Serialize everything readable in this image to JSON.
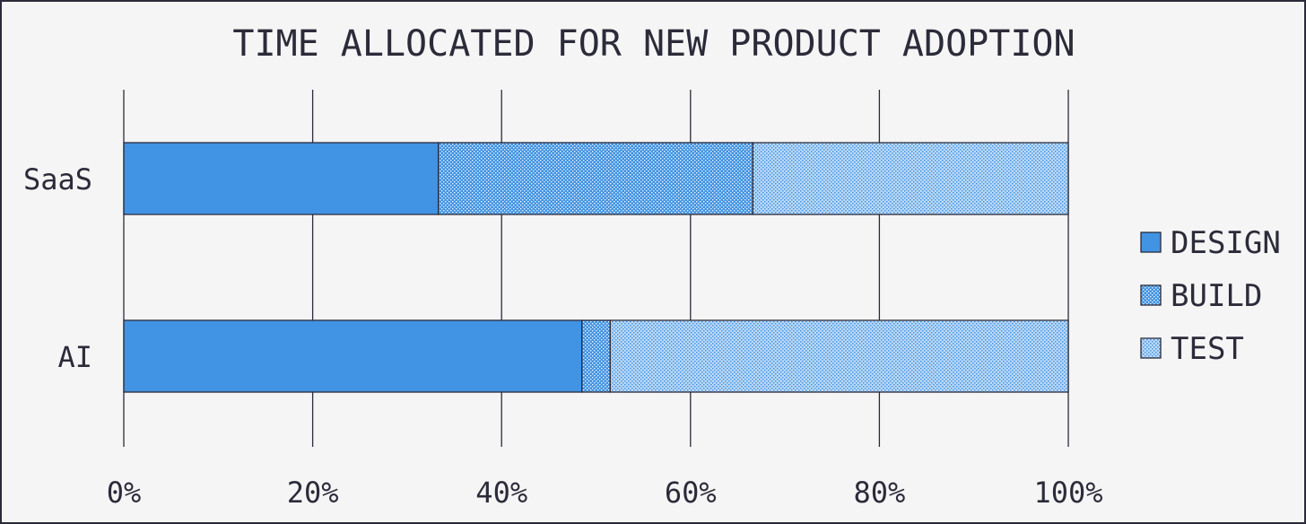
{
  "chart_data": {
    "type": "bar",
    "orientation": "horizontal",
    "stacked": true,
    "title": "TIME ALLOCATED FOR NEW PRODUCT ADOPTION",
    "categories": [
      "SaaS",
      "AI"
    ],
    "series": [
      {
        "name": "DESIGN",
        "values": [
          33.3,
          48.5
        ],
        "color": "#4193e3",
        "pattern": "solid"
      },
      {
        "name": "BUILD",
        "values": [
          33.3,
          3.0
        ],
        "color": "#4193e3",
        "pattern": "dense-dots"
      },
      {
        "name": "TEST",
        "values": [
          33.4,
          48.5
        ],
        "color": "#4193e3",
        "pattern": "light-dots"
      }
    ],
    "x_ticks": [
      "0%",
      "20%",
      "40%",
      "60%",
      "80%",
      "100%"
    ],
    "xlim": [
      0,
      100
    ],
    "grid": "vertical",
    "legend_position": "right"
  }
}
